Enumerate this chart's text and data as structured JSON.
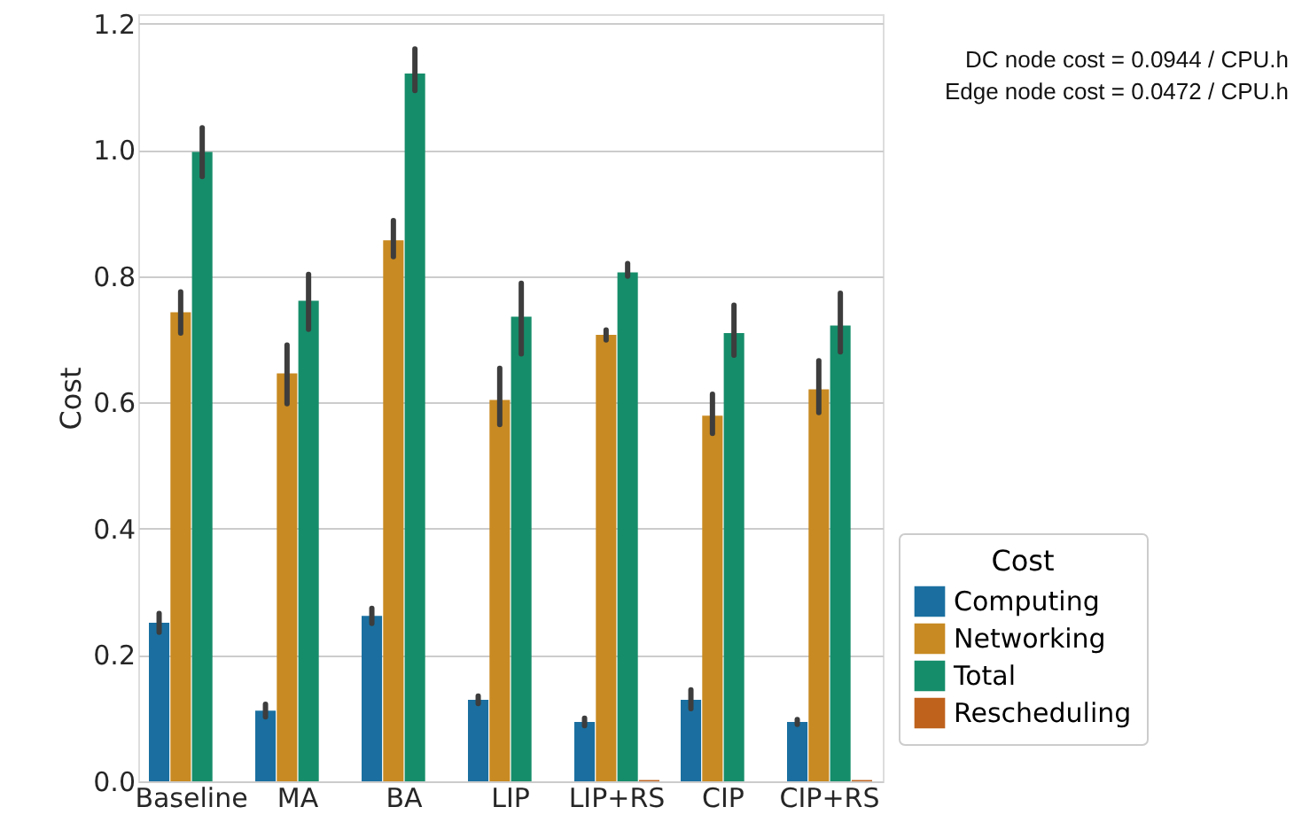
{
  "chart_data": {
    "type": "bar",
    "categories": [
      "Baseline",
      "MA",
      "BA",
      "LIP",
      "LIP+RS",
      "CIP",
      "CIP+RS"
    ],
    "ylabel": "Cost",
    "legend_title": "Cost",
    "series": [
      {
        "name": "Computing",
        "color": "#1a6fa0",
        "values": [
          0.251,
          0.112,
          0.262,
          0.129,
          0.094,
          0.129,
          0.094
        ],
        "errors": [
          [
            0.236,
            0.266
          ],
          [
            0.102,
            0.122
          ],
          [
            0.25,
            0.274
          ],
          [
            0.123,
            0.135
          ],
          [
            0.088,
            0.1
          ],
          [
            0.115,
            0.145
          ],
          [
            0.09,
            0.098
          ]
        ]
      },
      {
        "name": "Networking",
        "color": "#c88a22",
        "values": [
          0.743,
          0.646,
          0.857,
          0.604,
          0.707,
          0.579,
          0.621
        ],
        "errors": [
          [
            0.71,
            0.775
          ],
          [
            0.598,
            0.691
          ],
          [
            0.831,
            0.888
          ],
          [
            0.565,
            0.654
          ],
          [
            0.699,
            0.715
          ],
          [
            0.551,
            0.613
          ],
          [
            0.584,
            0.666
          ]
        ]
      },
      {
        "name": "Total",
        "color": "#168d6a",
        "values": [
          0.997,
          0.761,
          1.121,
          0.736,
          0.806,
          0.71,
          0.722
        ],
        "errors": [
          [
            0.958,
            1.035
          ],
          [
            0.716,
            0.803
          ],
          [
            1.094,
            1.16
          ],
          [
            0.677,
            0.789
          ],
          [
            0.8,
            0.82
          ],
          [
            0.675,
            0.754
          ],
          [
            0.68,
            0.773
          ]
        ]
      },
      {
        "name": "Rescheduling",
        "color": "#bf621c",
        "values": [
          null,
          null,
          null,
          null,
          0.002,
          null,
          0.002
        ]
      }
    ],
    "ylim": [
      0,
      1.215
    ],
    "yticks": [
      {
        "value": 0,
        "label": "0.0"
      },
      0.2,
      0.4,
      0.6,
      0.8,
      {
        "value": 1,
        "label": "1.0"
      },
      1.2
    ],
    "grid": "y",
    "legend": "right",
    "annotations": [
      "DC node cost = 0.0944 / CPU.h",
      "Edge node cost = 0.0472 / CPU.h"
    ]
  }
}
